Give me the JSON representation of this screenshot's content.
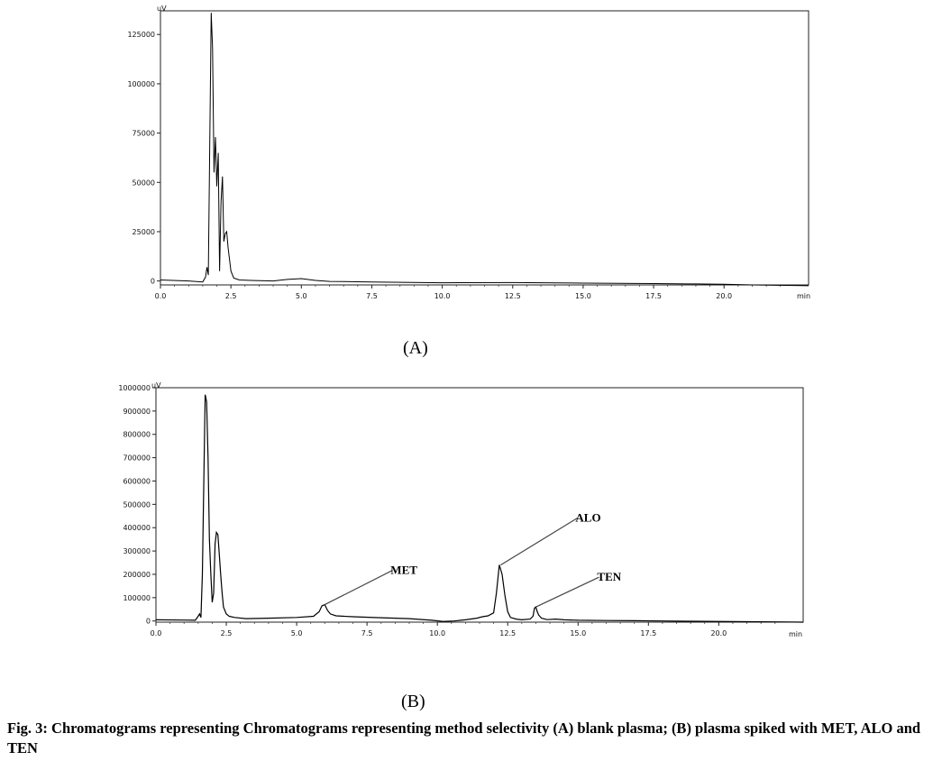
{
  "caption": "Fig. 3: Chromatograms representing Chromatograms representing method selectivity (A) blank plasma; (B) plasma spiked with MET, ALO and TEN",
  "chart_data": [
    {
      "type": "line",
      "panel_label": "(A)",
      "ylabel": "uV",
      "x_unit": "min",
      "xlim": [
        0,
        23
      ],
      "ylim": [
        -2000,
        137000
      ],
      "x_ticks": [
        "0.0",
        "2.5",
        "5.0",
        "7.5",
        "10.0",
        "12.5",
        "15.0",
        "17.5",
        "20.0"
      ],
      "y_ticks": [
        {
          "value": 0,
          "label": "0"
        },
        {
          "value": 25000,
          "label": "25000"
        },
        {
          "value": 50000,
          "label": "50000"
        },
        {
          "value": 75000,
          "label": "75000"
        },
        {
          "value": 100000,
          "label": "100000"
        },
        {
          "value": 125000,
          "label": "125000"
        }
      ],
      "series": [
        {
          "x": [
            0,
            1.0,
            1.5,
            1.6,
            1.65,
            1.7,
            1.75,
            1.8,
            1.85,
            1.9,
            1.95,
            2.0,
            2.05,
            2.1,
            2.15,
            2.2,
            2.25,
            2.3,
            2.35,
            2.4,
            2.5,
            2.6,
            2.8,
            3.2,
            4.0,
            4.5,
            5.0,
            5.5,
            6.0,
            7.5,
            10.0,
            12.5,
            15.0,
            17.5,
            19.0,
            20.0,
            21.0,
            23.0
          ],
          "y": [
            500,
            0,
            -500,
            2000,
            7000,
            3000,
            70000,
            136000,
            118000,
            55000,
            73000,
            48000,
            65000,
            5000,
            40000,
            53000,
            20000,
            24000,
            25000,
            17000,
            5000,
            1500,
            500,
            300,
            0,
            800,
            1200,
            300,
            -200,
            -500,
            -900,
            -800,
            -1100,
            -1300,
            -1500,
            -1700,
            -2000,
            -2400
          ]
        }
      ]
    },
    {
      "type": "line",
      "panel_label": "(B)",
      "ylabel": "uV",
      "x_unit": "min",
      "xlim": [
        0,
        23
      ],
      "ylim": [
        -5000,
        1000000
      ],
      "x_ticks": [
        "0.0",
        "2.5",
        "5.0",
        "7.5",
        "10.0",
        "12.5",
        "15.0",
        "17.5",
        "20.0"
      ],
      "y_ticks": [
        {
          "value": 0,
          "label": "0"
        },
        {
          "value": 100000,
          "label": "100000"
        },
        {
          "value": 200000,
          "label": "200000"
        },
        {
          "value": 300000,
          "label": "300000"
        },
        {
          "value": 400000,
          "label": "400000"
        },
        {
          "value": 500000,
          "label": "500000"
        },
        {
          "value": 600000,
          "label": "600000"
        },
        {
          "value": 700000,
          "label": "700000"
        },
        {
          "value": 800000,
          "label": "800000"
        },
        {
          "value": 900000,
          "label": "900000"
        },
        {
          "value": 1000000,
          "label": "1000000"
        }
      ],
      "series": [
        {
          "x": [
            0,
            1.0,
            1.4,
            1.5,
            1.55,
            1.6,
            1.65,
            1.7,
            1.75,
            1.8,
            1.85,
            1.9,
            1.95,
            2.0,
            2.05,
            2.1,
            2.15,
            2.2,
            2.25,
            2.3,
            2.35,
            2.4,
            2.5,
            2.6,
            2.8,
            3.2,
            4.0,
            5.0,
            5.6,
            5.8,
            5.9,
            6.0,
            6.1,
            6.2,
            6.4,
            7.0,
            8.0,
            9.0,
            9.8,
            10.2,
            10.6,
            11.0,
            11.4,
            11.6,
            11.8,
            12.0,
            12.1,
            12.2,
            12.3,
            12.4,
            12.5,
            12.6,
            12.8,
            13.0,
            13.3,
            13.4,
            13.45,
            13.5,
            13.55,
            13.6,
            13.7,
            13.9,
            14.2,
            14.5,
            15.0,
            16.0,
            17.0,
            18.0,
            19.0,
            20.0,
            21.0,
            22.0,
            23.0
          ],
          "y": [
            5000,
            4000,
            3000,
            20000,
            30000,
            15000,
            200000,
            600000,
            970000,
            940000,
            700000,
            350000,
            200000,
            80000,
            120000,
            330000,
            380000,
            370000,
            290000,
            200000,
            120000,
            60000,
            30000,
            20000,
            15000,
            10000,
            12000,
            15000,
            20000,
            40000,
            65000,
            70000,
            45000,
            30000,
            22000,
            18000,
            14000,
            10000,
            3000,
            -2000,
            0,
            5000,
            12000,
            18000,
            22000,
            35000,
            120000,
            240000,
            200000,
            110000,
            40000,
            15000,
            8000,
            5000,
            8000,
            20000,
            55000,
            60000,
            40000,
            25000,
            12000,
            6000,
            8000,
            5000,
            3000,
            2000,
            1000,
            0,
            -1000,
            -2000,
            -3000,
            -4000,
            -5000
          ]
        }
      ],
      "annotations": [
        {
          "text": "MET",
          "x": 6.0,
          "y": 70000
        },
        {
          "text": "ALO",
          "x": 12.25,
          "y": 240000
        },
        {
          "text": "TEN",
          "x": 13.5,
          "y": 60000
        }
      ]
    }
  ]
}
